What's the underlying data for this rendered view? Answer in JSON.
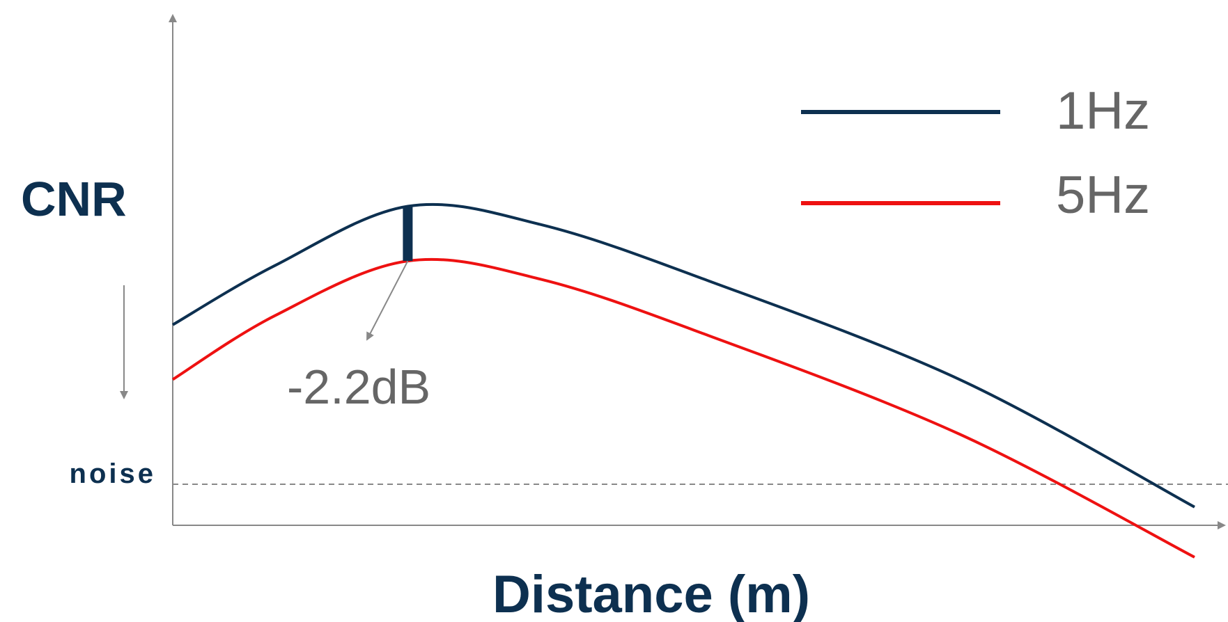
{
  "chart_data": {
    "type": "line",
    "title": "",
    "xlabel": "Distance (m)",
    "ylabel": "CNR",
    "noise_label": "noise",
    "grid": false,
    "legend_placement": "top-right",
    "series": [
      {
        "name": "1Hz",
        "color": "#0d3050",
        "points": [
          [
            0,
            0.44
          ],
          [
            0.1,
            0.57
          ],
          [
            0.23,
            0.7
          ],
          [
            0.36,
            0.66
          ],
          [
            0.52,
            0.54
          ],
          [
            0.77,
            0.32
          ],
          [
            1.0,
            0.04
          ]
        ]
      },
      {
        "name": "5Hz",
        "color": "#ee1111",
        "points": [
          [
            0,
            0.32
          ],
          [
            0.1,
            0.46
          ],
          [
            0.23,
            0.58
          ],
          [
            0.36,
            0.54
          ],
          [
            0.52,
            0.42
          ],
          [
            0.77,
            0.2
          ],
          [
            1.0,
            -0.07
          ]
        ]
      }
    ],
    "noise_level": 0.09,
    "annotations": [
      {
        "text": "-2.2dB",
        "color": "#666666"
      }
    ],
    "axis_color": "#888888",
    "label_color": "#0d3050"
  }
}
